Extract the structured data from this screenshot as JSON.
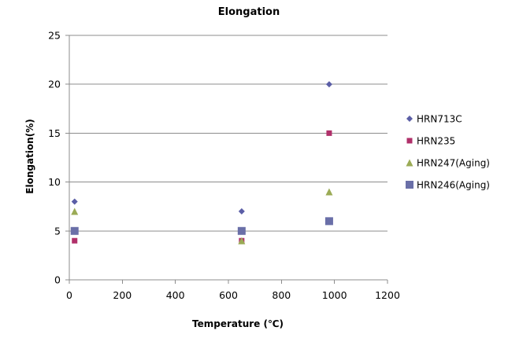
{
  "chart_data": {
    "type": "scatter",
    "title": "Elongation",
    "xlabel": "Temperature (℃)",
    "ylabel": "Elongation(%)",
    "xlim": [
      0,
      1200
    ],
    "ylim": [
      0,
      25
    ],
    "xticks": [
      0,
      200,
      400,
      600,
      800,
      1000,
      1200
    ],
    "yticks": [
      0,
      5,
      10,
      15,
      20,
      25
    ],
    "grid": "horizontal",
    "legend_position": "right",
    "series": [
      {
        "name": "HRN713C",
        "marker": "diamond",
        "color": "#5b5ea6",
        "points": [
          [
            20,
            8
          ],
          [
            650,
            7
          ],
          [
            980,
            20
          ]
        ]
      },
      {
        "name": "HRN235",
        "marker": "square",
        "color": "#b0306a",
        "points": [
          [
            20,
            4
          ],
          [
            650,
            4
          ],
          [
            980,
            15
          ]
        ]
      },
      {
        "name": "HRN247(Aging)",
        "marker": "triangle",
        "color": "#9bab56",
        "points": [
          [
            20,
            7
          ],
          [
            650,
            4
          ],
          [
            980,
            9
          ]
        ]
      },
      {
        "name": "HRN246(Aging)",
        "marker": "big-square",
        "color": "#6a6fa8",
        "points": [
          [
            20,
            5
          ],
          [
            650,
            5
          ],
          [
            980,
            6
          ]
        ]
      }
    ]
  }
}
